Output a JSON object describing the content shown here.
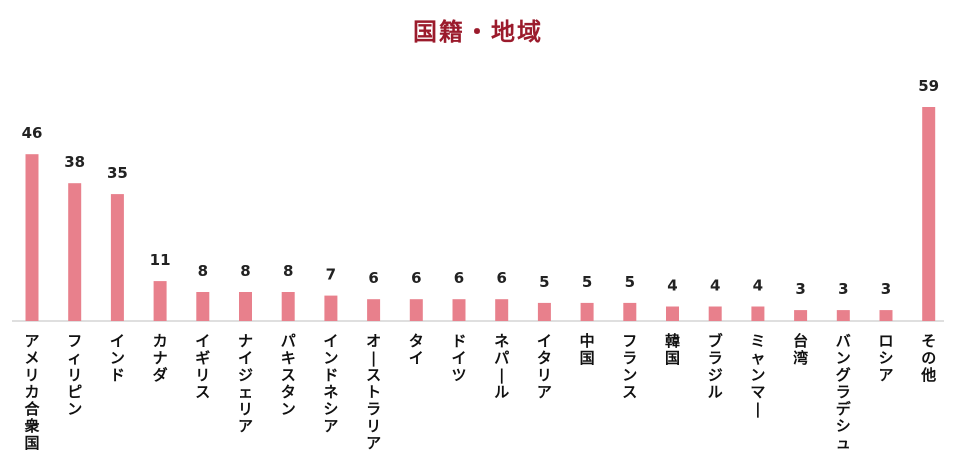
{
  "chart_data": {
    "type": "bar",
    "title": "国籍・地域",
    "categories": [
      "アメリカ合衆国",
      "フィリピン",
      "インド",
      "カナダ",
      "イギリス",
      "ナイジェリア",
      "パキスタン",
      "インドネシア",
      "オーストラリア",
      "タイ",
      "ドイツ",
      "ネパール",
      "イタリア",
      "中国",
      "フランス",
      "韓国",
      "ブラジル",
      "ミャンマー",
      "台湾",
      "バングラデシュ",
      "ロシア",
      "その他"
    ],
    "values": [
      46,
      38,
      35,
      11,
      8,
      8,
      8,
      7,
      6,
      6,
      6,
      6,
      5,
      5,
      5,
      4,
      4,
      4,
      3,
      3,
      3,
      59
    ],
    "ylim": [
      0,
      59
    ],
    "grid": false,
    "bar_color": "#e8808c",
    "title_color": "#9b1b2c"
  }
}
